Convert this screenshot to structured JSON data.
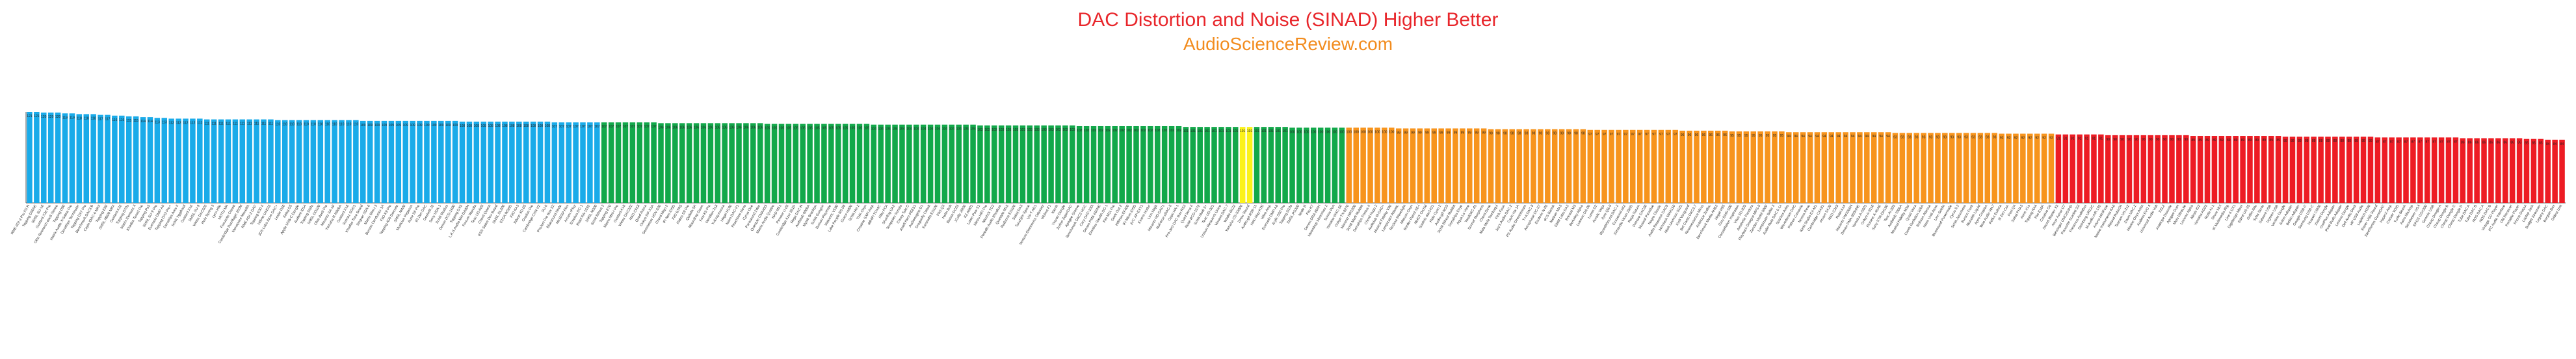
{
  "chart_data": {
    "type": "bar",
    "title": "DAC Distortion and Noise (SINAD) Higher Better",
    "subtitle": "AudioScienceReview.com",
    "xlabel": "",
    "ylabel": "",
    "ylim": [
      0,
      125
    ],
    "grid": false,
    "legend": "none",
    "colors": {
      "title": "#e8262b",
      "subtitle": "#f28c1e",
      "excellent": "#1aabe9",
      "very_good": "#12a84a",
      "highlight": "#fbf21a",
      "good": "#f7941d",
      "poor": "#ed1c24"
    },
    "tiers": [
      {
        "name": "excellent",
        "start": 0,
        "end": 81
      },
      {
        "name": "very_good",
        "start": 81,
        "end": 171
      },
      {
        "name": "highlight",
        "start": 171,
        "end": 173
      },
      {
        "name": "very_good",
        "start": 173,
        "end": 186
      },
      {
        "name": "good",
        "start": 186,
        "end": 286
      },
      {
        "name": "poor",
        "start": 286,
        "end": 400
      }
    ],
    "segments": [
      {
        "from": 0,
        "to": 12,
        "start": 121,
        "end": 117
      },
      {
        "from": 12,
        "to": 20,
        "start": 116,
        "end": 113
      },
      {
        "from": 20,
        "to": 40,
        "start": 112,
        "end": 110
      },
      {
        "from": 40,
        "to": 81,
        "start": 110,
        "end": 107
      },
      {
        "from": 81,
        "to": 186,
        "start": 107,
        "end": 100
      },
      {
        "from": 186,
        "to": 240,
        "start": 100,
        "end": 96
      },
      {
        "from": 240,
        "to": 286,
        "start": 95,
        "end": 92
      },
      {
        "from": 286,
        "to": 350,
        "start": 91,
        "end": 86
      },
      {
        "from": 350,
        "to": 380,
        "start": 86,
        "end": 77
      },
      {
        "from": 380,
        "to": 392,
        "start": 76,
        "end": 66
      },
      {
        "from": 392,
        "to": 400,
        "start": 64,
        "end": 42
      }
    ],
    "categories": [
      "RME ADI-2 Pro FS R",
      "Topping D90SE",
      "SMSL SU-10",
      "Gustard X26 Pro",
      "Okto Research dac8 Stereo",
      "Topping D90",
      "Matrix Audio X-Sabre Pro",
      "Denafrips Terminator",
      "Topping DX7 Pro",
      "Benchmark DAC3 B",
      "Cayin iDAC-6 MKII",
      "Topping E50",
      "SMSL M500 MKII",
      "Gustard A22",
      "Topping D70s",
      "Matrix Element X",
      "Khadas Tone2 Pro",
      "Topping Pa5",
      "SMSL SU-9 Pro",
      "Eversolo DMP-A6",
      "Topping DX3 Pro+",
      "Denafrips Ares II",
      "Schiit Yggdrasil",
      "Gustard X16",
      "SMSL SU-9",
      "Weiss DAC502",
      "Holo Spring 3",
      "Lynx Hilo",
      "MOTU M4",
      "Focusrite Clarett",
      "Cambridge DacMagic 200M",
      "Monoprice Monolith",
      "RME ADI-2 DAC",
      "Topping E30 II",
      "Hifime UAE23",
      "JDS Labs Atom DAC+",
      "Loxjie D30",
      "Sabaj D5",
      "Apple USB-C Dongle",
      "Audient iD14",
      "Topping D50s",
      "SMSL DO100",
      "Okto dac8 Pro",
      "Marantz SA-10",
      "Yamaha R-N800A",
      "Gustard X18",
      "Soncoz SGD1",
      "Khadas Tone Board",
      "Singxer SDA-6",
      "Matrix Mini-i 3",
      "Burson Conductor 3X",
      "FiiO K9 Pro",
      "Topping A90 Discrete",
      "SMSL M400",
      "Musician Pegasus",
      "Aune S6 Pro",
      "iFi Zen DAC",
      "Geshelli J2",
      "Sony UDA-1",
      "Schiit Modius",
      "Denon DCD-1600",
      "Topping DX5",
      "L.K.S Audio MH-DA004",
      "Ferrum Wandla",
      "Teac UD-505",
      "Chord Qutest",
      "ESS Sabre Dev Board",
      "SMSL DL200",
      "E1DA 9038D",
      "FiiO KA3",
      "Xduoo XD-05",
      "Ovation Pro",
      "Cambridge CXN V2",
      "SU-6",
      "ProJect Pre Box S2",
      "Bluesound Node",
      "MiniDSP Flex",
      "Arcam rPlay",
      "Emotiva DC-1",
      "Rotel RA-1592",
      "SMSL M200",
      "Schiit Bifrost 2",
      "Topping E70",
      "Matrix Mini-i Pro",
      "Gustard A18",
      "Weiss DAC202",
      "NAD C658",
      "Quad Artera",
      "Onkyo DP-X1A",
      "Sennheiser HDV 820",
      "Chord Mojo 2",
      "iFi Neo iDSD",
      "FiiO BTR5",
      "Hidizs S9 Pro",
      "Qudelix 5K",
      "Moondrop Dawn",
      "Fosi K5 Pro",
      "Meridian 218",
      "Yulong Aurora",
      "Hegel H190",
      "Naim DAC-V1",
      "Peachtree Nova",
      "Cyrus One",
      "Parasound Zdac",
      "Questyle CMA400i",
      "Matrix Audio Quattro",
      "NAD M51",
      "Pioneer U-05",
      "Cambridge Azur 851D",
      "Rega DAC-R",
      "Audiolab 6000A",
      "Mytek Brooklyn",
      "Schiit Gungnir",
      "Burson Playmate",
      "Violectric V590",
      "Lake People RS 08",
      "Grace m900",
      "Schiit Hel 2",
      "THX Onyx",
      "Creative SXFI Amp",
      "ddHiFi TC44C",
      "Hiby FC4",
      "Shanling UA2",
      "Tempotec Sonata",
      "Cozoy Takt C",
      "Astell Kern PEE51",
      "Audioengine D1",
      "Dragonfly Cobalt",
      "Earstudio ES100",
      "FiiO Q3",
      "Helm Bolt",
      "iBasso DC03",
      "JCally JM20",
      "KZ AM01",
      "Lotoo Paw S1",
      "Meizu HiFi Pro",
      "Nicehck TC2",
      "Periodic Audio Rhodium",
      "Questyle M15",
      "Radsone ES100",
      "Sabaj DA3",
      "Tanchjim Space",
      "Uni-T AD1",
      "Venture Electronics Odyssey",
      "Walnut F1",
      "Xtenik",
      "Yinyoo Dongle",
      "Zorloo ZuperDAC",
      "Apogee Groove",
      "Benchmark DAC2 HGC",
      "Cary DAC-100t",
      "Denon PMA-600NE",
      "Emotiva Stealth DC-1",
      "Fiio M11 Pro",
      "Geek Out 2",
      "Hifiman EF400",
      "iFi Micro iDSD",
      "JVC XP-EXT1",
      "Kinera Hodur",
      "Linn Majik",
      "Marantz HD-DAC1",
      "NuForce uDAC-5",
      "Oppo HA-1",
      "Pro-Ject DAC Box RS2",
      "Quad Vena II",
      "Rotel RCD-1572",
      "Schiit Modi 3+",
      "Teac UD-301",
      "Unison Research Unico",
      "Vincent DAC-7",
      "Wadia di122",
      "Yamaha CD-S3000",
      "Zotac Sound",
      "Audio-gd R2R-11",
      "Holo May KTE",
      "Wiim Amp",
      "Eversolo DMP-A8",
      "Arylic S50 Pro",
      "Topping D10s",
      "SMSL PS200",
      "Node 2i",
      "Fiio K7",
      "Denon DRA-800H",
      "Moondrop Moonriver 2",
      "Sonos Port",
      "Yamaha WXC-50",
      "Onkyo TX-8270",
      "Marantz NR1200",
      "Schiit Modi Multibit",
      "Denafrips Pontus II",
      "Chord Hugo 2",
      "Audiolab M-DAC+",
      "Musical Fidelity V90",
      "Lampizator Atlantic",
      "Rockna Wavelight",
      "Metrum Onyx",
      "Border Patrol SE-i",
      "MHDT Orchid",
      "Soekris dac1421",
      "Holo Cyan 2",
      "Audio-gd NOS",
      "Schiit Bifrost Multibit",
      "Denafrips Enyo",
      "Aqua La Voce",
      "TotalDAC d1",
      "Sonnet Morpheus",
      "Chord Dave",
      "Mola Mola Tambaqui",
      "Pink Faun",
      "Jay's Audio DAC-2",
      "Cayin Ha-1A",
      "PS Audio DirectStream",
      "T+A DAC 8",
      "Accuphase DC-37",
      "Esoteric N-05",
      "dCS Bartok",
      "Meitner MA3",
      "EMM Labs DA2",
      "Bricasti M3",
      "Berkeley Alpha",
      "Luxman DA-06",
      "Lumin D2",
      "Auralic Vega",
      "Ayre QB-9",
      "Wyred4Sound DAC-2",
      "Exasound e62",
      "Simaudio Moon 280D",
      "Rega Saturn",
      "Primare DAC30",
      "Musical Paradise",
      "Nagra Classic",
      "Audio Research DAC9",
      "McIntosh MHA150",
      "Mark Levinson 5101",
      "Krell Vanguard",
      "Bel Canto DAC3.7",
      "Resonessence Mirus",
      "Antelope Zodiac",
      "Benchmark Media AHB2",
      "Hegel H95",
      "Cary DMS-500",
      "Constellation Inspiration",
      "Vitus SD-025",
      "Aesthetix Pandora",
      "Playback Designs MPS-5",
      "Zanden Model 5000",
      "Lampizator Baltic 3",
      "Audio Note DAC 0.1x",
      "Sparkos Aries",
      "Wavedream DAC",
      "Pathos Converto",
      "Norma Revo",
      "Kinki Studio EX-M1",
      "Cambridge CXA81",
      "Arcam SA20",
      "NAD C368",
      "Rotel A14",
      "Marantz PM7000N",
      "Denon PMA-900HNE",
      "Yamaha A-S801",
      "Onkyo A-9110",
      "Pioneer A-40AE",
      "Sony STR-DH190",
      "Teac AI-303",
      "Audiolab 7000A",
      "Musical Fidelity M3si",
      "Quad Vena",
      "Creek Evolution 100A",
      "Roksan Attessa",
      "Naim Uniti Atom",
      "Linn Selekt",
      "Bluesound Powernode",
      "Cyrus 8.2",
      "Schiit Jotunheim",
      "Burson Funk",
      "Monolith Liquid",
      "Apos Caspian",
      "Woo Audio WA7",
      "Feliks Euforia",
      "Ifi Zen Can",
      "Fosi Q4",
      "Sabaj PHA3",
      "Aune X1s",
      "Topping NX4",
      "Fiio E10K",
      "Creative G6",
      "Sound Blaster X3",
      "Asus Xonar U7",
      "Behringer UMC204HD",
      "Focusrite Scarlett 2i2",
      "Presonus AudioBox",
      "Steinberg UR22C",
      "M-Audio AIR 192",
      "Arturia MiniFuse",
      "Native Instruments KA6",
      "Roland Rubix24",
      "Tascam US-2x2",
      "Zoom UAC-2",
      "Mackie Onyx Artist",
      "Audient EVO 4",
      "Universal Audio Volt",
      "SSL2",
      "Antelope Discrete",
      "Apogee Duet",
      "Motu UltraLite",
      "Lexicon Alpha",
      "Alesis iO2",
      "Yamaha AG03",
      "Rode AI-1",
      "Shure MVi",
      "IK Multimedia iRig",
      "Line 6 UX1",
      "Digidesign Mbox",
      "Edirol UA-25",
      "Griffin iMic",
      "Syba Sonic",
      "Sabrent USB",
      "Ugreen USB",
      "Vention Dongle",
      "Anker Adapter",
      "Belkin Adapter",
      "Google USB-C",
      "Samsung USB-C",
      "Huawei CM20",
      "Xiaomi Dongle",
      "OnePlus Adapter",
      "Pixel Buds Adapter",
      "Lenovo Dongle",
      "Dell Audio Dock",
      "HP USB Audio",
      "Logitech H390",
      "Razer USB Sound",
      "SteelSeries GameDAC",
      "HyperX Amp",
      "Corsair VOID",
      "Turtle Beach",
      "Astro MixAmp",
      "Sennheiser GSX",
      "EPOS GSX300",
      "Generic USB",
      "Cheap Dongle A",
      "Cheap Dongle B",
      "Cheap Dongle C",
      "Cheap Dongle D",
      "Tube DAC A",
      "Tube DAC B",
      "NOS DAC A",
      "NOS DAC B",
      "Vintage CD Player",
      "PC Audio Interface",
      "Old Receiver",
      "Portable Player",
      "Phone Output",
      "Laptop Jack",
      "Budget Streamer",
      "Legacy DAC",
      "Bargain Box",
      "Oldest Unit"
    ]
  }
}
